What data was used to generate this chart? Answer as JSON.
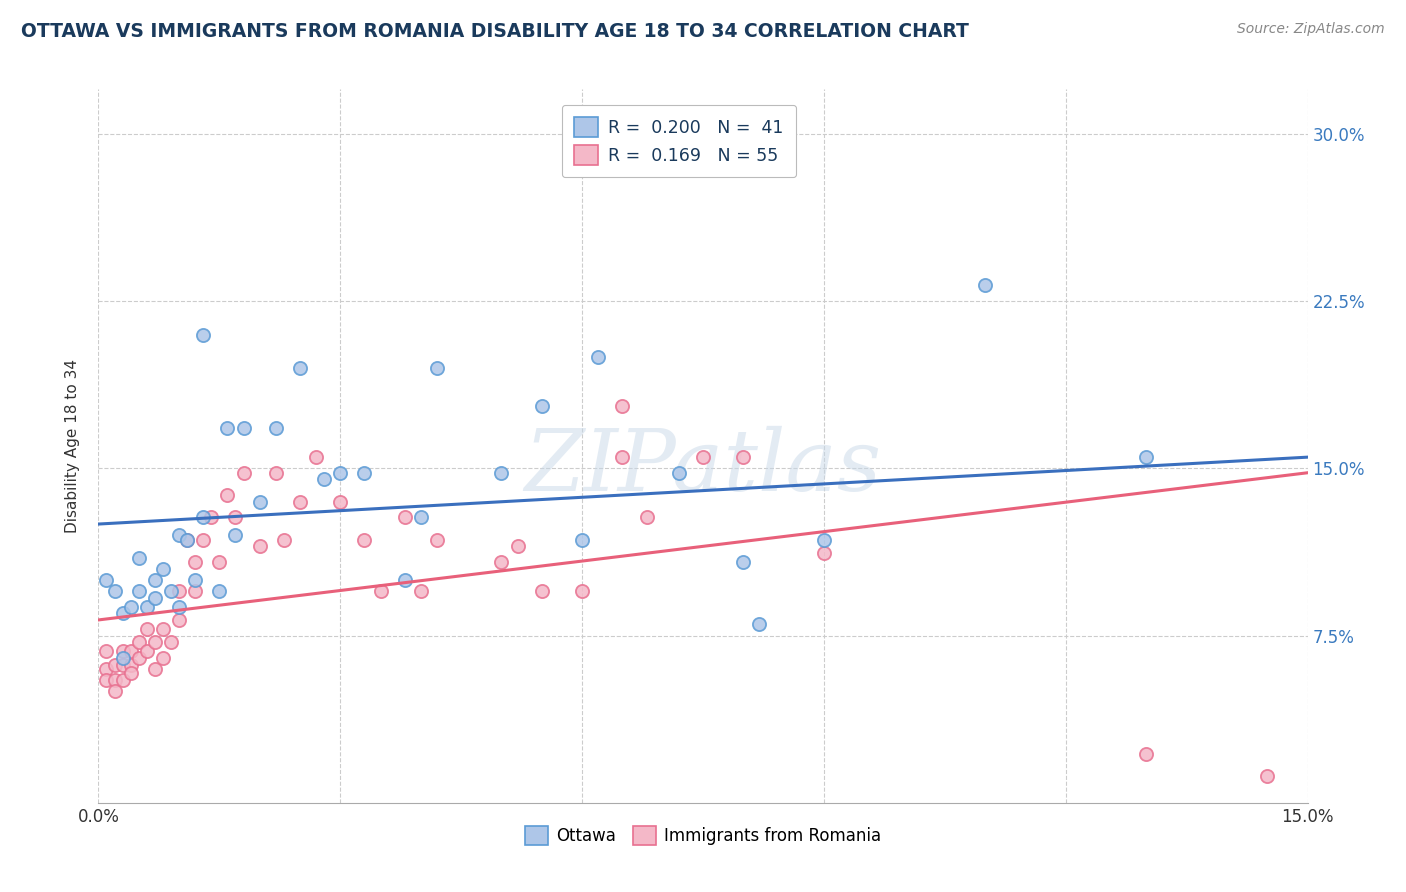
{
  "title": "OTTAWA VS IMMIGRANTS FROM ROMANIA DISABILITY AGE 18 TO 34 CORRELATION CHART",
  "source": "Source: ZipAtlas.com",
  "ylabel": "Disability Age 18 to 34",
  "xlim": [
    0.0,
    0.15
  ],
  "ylim": [
    0.0,
    0.32
  ],
  "xticks": [
    0.0,
    0.03,
    0.06,
    0.09,
    0.12,
    0.15
  ],
  "xtick_labels": [
    "0.0%",
    "",
    "",
    "",
    "",
    "15.0%"
  ],
  "yticks": [
    0.0,
    0.075,
    0.15,
    0.225,
    0.3
  ],
  "ytick_labels": [
    "",
    "7.5%",
    "15.0%",
    "22.5%",
    "30.0%"
  ],
  "legend_ottawa": "R =  0.200   N =  41",
  "legend_romania": "R =  0.169   N = 55",
  "title_color": "#1a3a5c",
  "source_color": "#888888",
  "ottawa_color": "#aec6e8",
  "romania_color": "#f4b8c8",
  "ottawa_edge_color": "#5b9bd5",
  "romania_edge_color": "#e87090",
  "ottawa_line_color": "#3a6fbe",
  "romania_line_color": "#e8607a",
  "grid_color": "#cccccc",
  "background_color": "#ffffff",
  "ottawa_scatter_x": [
    0.001,
    0.002,
    0.003,
    0.003,
    0.004,
    0.005,
    0.005,
    0.006,
    0.007,
    0.007,
    0.008,
    0.009,
    0.01,
    0.01,
    0.011,
    0.012,
    0.013,
    0.013,
    0.015,
    0.016,
    0.017,
    0.018,
    0.02,
    0.022,
    0.025,
    0.028,
    0.03,
    0.033,
    0.038,
    0.04,
    0.042,
    0.05,
    0.055,
    0.06,
    0.062,
    0.072,
    0.08,
    0.082,
    0.09,
    0.11,
    0.13
  ],
  "ottawa_scatter_y": [
    0.1,
    0.095,
    0.065,
    0.085,
    0.088,
    0.095,
    0.11,
    0.088,
    0.092,
    0.1,
    0.105,
    0.095,
    0.12,
    0.088,
    0.118,
    0.1,
    0.21,
    0.128,
    0.095,
    0.168,
    0.12,
    0.168,
    0.135,
    0.168,
    0.195,
    0.145,
    0.148,
    0.148,
    0.1,
    0.128,
    0.195,
    0.148,
    0.178,
    0.118,
    0.2,
    0.148,
    0.108,
    0.08,
    0.118,
    0.232,
    0.155
  ],
  "romania_scatter_x": [
    0.001,
    0.001,
    0.001,
    0.002,
    0.002,
    0.002,
    0.003,
    0.003,
    0.003,
    0.004,
    0.004,
    0.004,
    0.005,
    0.005,
    0.006,
    0.006,
    0.007,
    0.007,
    0.008,
    0.008,
    0.009,
    0.01,
    0.01,
    0.011,
    0.012,
    0.012,
    0.013,
    0.014,
    0.015,
    0.016,
    0.017,
    0.018,
    0.02,
    0.022,
    0.023,
    0.025,
    0.027,
    0.03,
    0.033,
    0.035,
    0.038,
    0.04,
    0.042,
    0.05,
    0.052,
    0.055,
    0.06,
    0.065,
    0.065,
    0.068,
    0.075,
    0.08,
    0.09,
    0.13,
    0.145
  ],
  "romania_scatter_y": [
    0.068,
    0.06,
    0.055,
    0.062,
    0.055,
    0.05,
    0.055,
    0.062,
    0.068,
    0.062,
    0.068,
    0.058,
    0.072,
    0.065,
    0.078,
    0.068,
    0.06,
    0.072,
    0.078,
    0.065,
    0.072,
    0.082,
    0.095,
    0.118,
    0.095,
    0.108,
    0.118,
    0.128,
    0.108,
    0.138,
    0.128,
    0.148,
    0.115,
    0.148,
    0.118,
    0.135,
    0.155,
    0.135,
    0.118,
    0.095,
    0.128,
    0.095,
    0.118,
    0.108,
    0.115,
    0.095,
    0.095,
    0.178,
    0.155,
    0.128,
    0.155,
    0.155,
    0.112,
    0.022,
    0.012
  ],
  "watermark": "ZIPatlas",
  "watermark_color": "#c8d8e8"
}
